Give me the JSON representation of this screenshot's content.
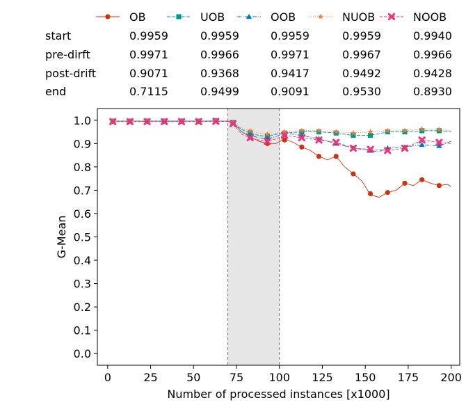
{
  "chart_data": {
    "type": "line",
    "xlabel": "Number of processed instances [x1000]",
    "ylabel": "G-Mean",
    "xlim": [
      -6,
      205
    ],
    "ylim": [
      -0.05,
      1.05
    ],
    "xticks": [
      0,
      25,
      50,
      75,
      100,
      125,
      150,
      175,
      200
    ],
    "yticks": [
      0.0,
      0.1,
      0.2,
      0.3,
      0.4,
      0.5,
      0.6,
      0.7,
      0.8,
      0.9,
      1.0
    ],
    "drift_region": [
      70,
      100
    ],
    "legend_position": "top",
    "table_rows": [
      "start",
      "pre-dirft",
      "post-drift",
      "end"
    ],
    "series": [
      {
        "name": "OB",
        "color": "#cc3311",
        "marker": "circle",
        "dash": "",
        "table": [
          "0.9959",
          "0.9971",
          "0.9071",
          "0.7115"
        ],
        "x": [
          3,
          13,
          23,
          33,
          43,
          53,
          63,
          70,
          73,
          78,
          83,
          88,
          93,
          98,
          103,
          108,
          113,
          118,
          123,
          128,
          133,
          138,
          143,
          148,
          153,
          158,
          163,
          168,
          173,
          178,
          183,
          188,
          193,
          198,
          200
        ],
        "y": [
          0.996,
          0.996,
          0.996,
          0.996,
          0.996,
          0.996,
          0.997,
          0.996,
          0.99,
          0.95,
          0.93,
          0.91,
          0.9,
          0.9,
          0.92,
          0.905,
          0.885,
          0.87,
          0.845,
          0.83,
          0.845,
          0.8,
          0.77,
          0.74,
          0.68,
          0.67,
          0.69,
          0.7,
          0.73,
          0.72,
          0.745,
          0.73,
          0.72,
          0.725,
          0.715
        ],
        "mx": [
          3,
          13,
          23,
          33,
          43,
          53,
          63,
          73,
          83,
          93,
          103,
          113,
          123,
          133,
          143,
          153,
          163,
          173,
          183,
          193
        ],
        "my": [
          0.996,
          0.996,
          0.996,
          0.996,
          0.996,
          0.996,
          0.997,
          0.99,
          0.93,
          0.9,
          0.915,
          0.885,
          0.845,
          0.845,
          0.77,
          0.685,
          0.69,
          0.73,
          0.745,
          0.72
        ]
      },
      {
        "name": "UOB",
        "color": "#009988",
        "marker": "square",
        "dash": "5,2",
        "table": [
          "0.9959",
          "0.9966",
          "0.9368",
          "0.9499"
        ],
        "x": [
          3,
          13,
          23,
          33,
          43,
          53,
          63,
          70,
          73,
          78,
          83,
          88,
          93,
          98,
          103,
          113,
          123,
          133,
          143,
          153,
          163,
          173,
          183,
          193,
          200
        ],
        "y": [
          0.996,
          0.996,
          0.996,
          0.996,
          0.996,
          0.996,
          0.997,
          0.996,
          0.99,
          0.96,
          0.945,
          0.935,
          0.93,
          0.94,
          0.945,
          0.95,
          0.95,
          0.945,
          0.935,
          0.935,
          0.95,
          0.95,
          0.955,
          0.955,
          0.95
        ],
        "mx": [
          3,
          13,
          23,
          33,
          43,
          53,
          63,
          73,
          83,
          93,
          103,
          113,
          123,
          133,
          143,
          153,
          163,
          173,
          183,
          193
        ],
        "my": [
          0.996,
          0.996,
          0.996,
          0.996,
          0.996,
          0.996,
          0.997,
          0.99,
          0.945,
          0.93,
          0.945,
          0.95,
          0.95,
          0.945,
          0.935,
          0.935,
          0.95,
          0.95,
          0.955,
          0.955
        ]
      },
      {
        "name": "OOB",
        "color": "#0077bb",
        "marker": "triangle",
        "dash": "6,2,1,2",
        "table": [
          "0.9959",
          "0.9971",
          "0.9417",
          "0.9091"
        ],
        "x": [
          3,
          13,
          23,
          33,
          43,
          53,
          63,
          70,
          73,
          78,
          83,
          88,
          93,
          98,
          103,
          113,
          123,
          133,
          143,
          153,
          158,
          163,
          173,
          183,
          193,
          200
        ],
        "y": [
          0.996,
          0.996,
          0.996,
          0.996,
          0.996,
          0.996,
          0.997,
          0.996,
          0.99,
          0.95,
          0.935,
          0.925,
          0.92,
          0.93,
          0.945,
          0.935,
          0.92,
          0.9,
          0.88,
          0.87,
          0.865,
          0.88,
          0.885,
          0.895,
          0.89,
          0.91
        ],
        "mx": [
          3,
          13,
          23,
          33,
          43,
          53,
          63,
          73,
          83,
          93,
          103,
          113,
          123,
          133,
          143,
          153,
          163,
          173,
          183,
          193
        ],
        "my": [
          0.996,
          0.996,
          0.996,
          0.996,
          0.996,
          0.996,
          0.997,
          0.99,
          0.935,
          0.92,
          0.945,
          0.935,
          0.92,
          0.9,
          0.88,
          0.87,
          0.88,
          0.885,
          0.895,
          0.89
        ]
      },
      {
        "name": "NUOB",
        "color": "#ee7733",
        "marker": "star",
        "dash": "1,2",
        "table": [
          "0.9959",
          "0.9967",
          "0.9492",
          "0.9530"
        ],
        "x": [
          3,
          13,
          23,
          33,
          43,
          53,
          63,
          70,
          73,
          78,
          83,
          88,
          93,
          98,
          103,
          113,
          123,
          133,
          143,
          153,
          163,
          173,
          183,
          193,
          200
        ],
        "y": [
          0.996,
          0.996,
          0.996,
          0.996,
          0.996,
          0.996,
          0.997,
          0.996,
          0.99,
          0.965,
          0.955,
          0.945,
          0.94,
          0.945,
          0.95,
          0.955,
          0.955,
          0.95,
          0.945,
          0.95,
          0.955,
          0.955,
          0.962,
          0.96,
          0.955
        ],
        "mx": [
          3,
          13,
          23,
          33,
          43,
          53,
          63,
          73,
          83,
          93,
          103,
          113,
          123,
          133,
          143,
          153,
          163,
          173,
          183,
          193
        ],
        "my": [
          0.996,
          0.996,
          0.996,
          0.996,
          0.996,
          0.996,
          0.997,
          0.99,
          0.955,
          0.94,
          0.95,
          0.955,
          0.955,
          0.95,
          0.945,
          0.95,
          0.955,
          0.955,
          0.962,
          0.96
        ]
      },
      {
        "name": "NOOB",
        "color": "#ee3377",
        "marker": "x",
        "dash": "4,2",
        "table": [
          "0.9940",
          "0.9966",
          "0.9428",
          "0.8930"
        ],
        "x": [
          3,
          13,
          23,
          33,
          43,
          53,
          63,
          70,
          73,
          78,
          83,
          88,
          93,
          98,
          103,
          113,
          123,
          133,
          143,
          153,
          163,
          173,
          183,
          193,
          200
        ],
        "y": [
          0.994,
          0.994,
          0.994,
          0.994,
          0.994,
          0.994,
          0.995,
          0.994,
          0.985,
          0.94,
          0.925,
          0.915,
          0.91,
          0.92,
          0.935,
          0.925,
          0.915,
          0.905,
          0.88,
          0.875,
          0.87,
          0.88,
          0.915,
          0.905,
          0.9
        ],
        "mx": [
          3,
          13,
          23,
          33,
          43,
          53,
          63,
          73,
          83,
          93,
          103,
          113,
          123,
          133,
          143,
          153,
          163,
          173,
          183,
          193
        ],
        "my": [
          0.994,
          0.994,
          0.994,
          0.994,
          0.994,
          0.994,
          0.995,
          0.985,
          0.925,
          0.91,
          0.935,
          0.925,
          0.915,
          0.905,
          0.88,
          0.875,
          0.87,
          0.88,
          0.915,
          0.905
        ]
      }
    ]
  }
}
